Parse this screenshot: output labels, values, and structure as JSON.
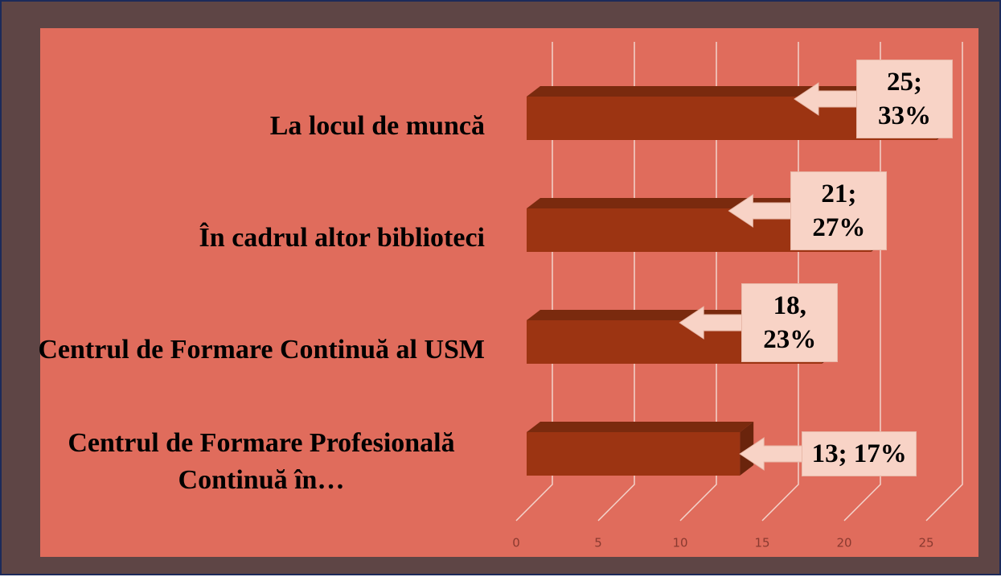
{
  "chart_data": {
    "type": "bar",
    "orientation": "horizontal",
    "categories": [
      "La locul de muncă",
      "În cadrul altor biblioteci",
      "Centrul de Formare Continuă al USM",
      "Centrul de Formare Profesională Continuă în…"
    ],
    "values": [
      25,
      21,
      18,
      13
    ],
    "value_labels": [
      "25; 33%",
      "21; 27%",
      "18, 23%",
      "13; 17%"
    ],
    "color": "#9c3412",
    "xlim": [
      0,
      25
    ],
    "xticks": [
      0,
      5,
      10,
      15,
      20,
      25
    ],
    "grid": true
  }
}
